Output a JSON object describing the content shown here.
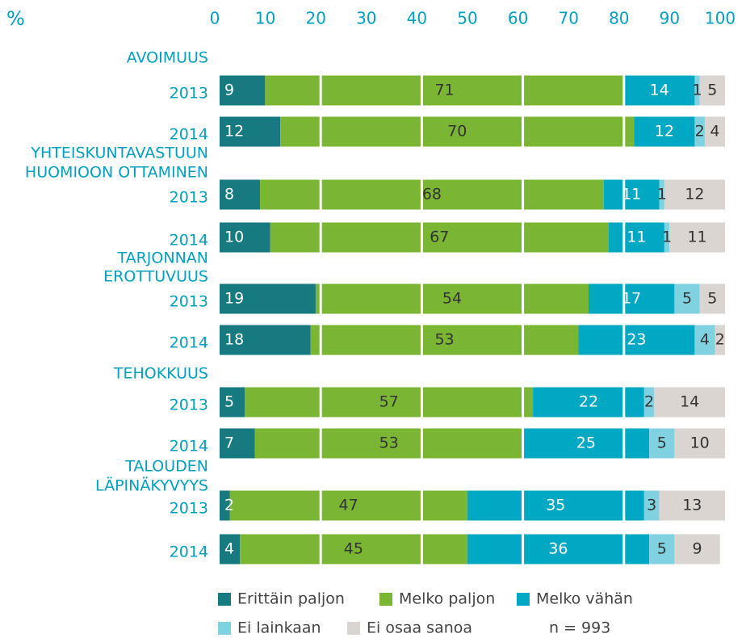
{
  "chart_data": {
    "type": "stacked_bar_horizontal",
    "axis_unit": "%",
    "categories": [
      "2013",
      "2014",
      "2013",
      "2014",
      "2013",
      "2014",
      "2013",
      "2014",
      "2013",
      "2014"
    ],
    "groups": [
      [
        "AVOIMUUS"
      ],
      [
        "YHTEISKUNTAVASTUUN",
        "HUOMIOON OTTAMINEN"
      ],
      [
        "TARJONNAN",
        "EROTTUVUUS"
      ],
      [
        "TEHOKKUUS"
      ],
      [
        "TALOUDEN",
        "LÄPINÄKYVYYS"
      ]
    ],
    "series": [
      {
        "name": "Erittäin paljon",
        "color": "#177a80",
        "label_color": "#ffffff",
        "values": [
          9,
          12,
          8,
          10,
          19,
          18,
          5,
          7,
          2,
          4
        ]
      },
      {
        "name": "Melko paljon",
        "color": "#7ab534",
        "label_color": "#333333",
        "values": [
          71,
          70,
          68,
          67,
          54,
          53,
          57,
          53,
          47,
          45
        ]
      },
      {
        "name": "Melko vähän",
        "color": "#00a8c4",
        "label_color": "#ffffff",
        "values": [
          14,
          12,
          11,
          11,
          17,
          23,
          22,
          25,
          35,
          36
        ]
      },
      {
        "name": "Ei lainkaan",
        "color": "#80d2e0",
        "label_color": "#333333",
        "values": [
          1,
          2,
          1,
          1,
          5,
          4,
          2,
          5,
          3,
          5
        ]
      },
      {
        "name": "Ei osaa sanoa",
        "color": "#dad5d0",
        "label_color": "#333333",
        "values": [
          5,
          4,
          12,
          11,
          5,
          2,
          14,
          10,
          13,
          9
        ]
      }
    ],
    "xlim": [
      0,
      100
    ],
    "xticks": [
      0,
      10,
      20,
      30,
      40,
      50,
      60,
      70,
      80,
      90,
      100
    ],
    "grid_ticks": [
      20,
      40,
      60,
      80
    ],
    "note": "n = 993"
  }
}
